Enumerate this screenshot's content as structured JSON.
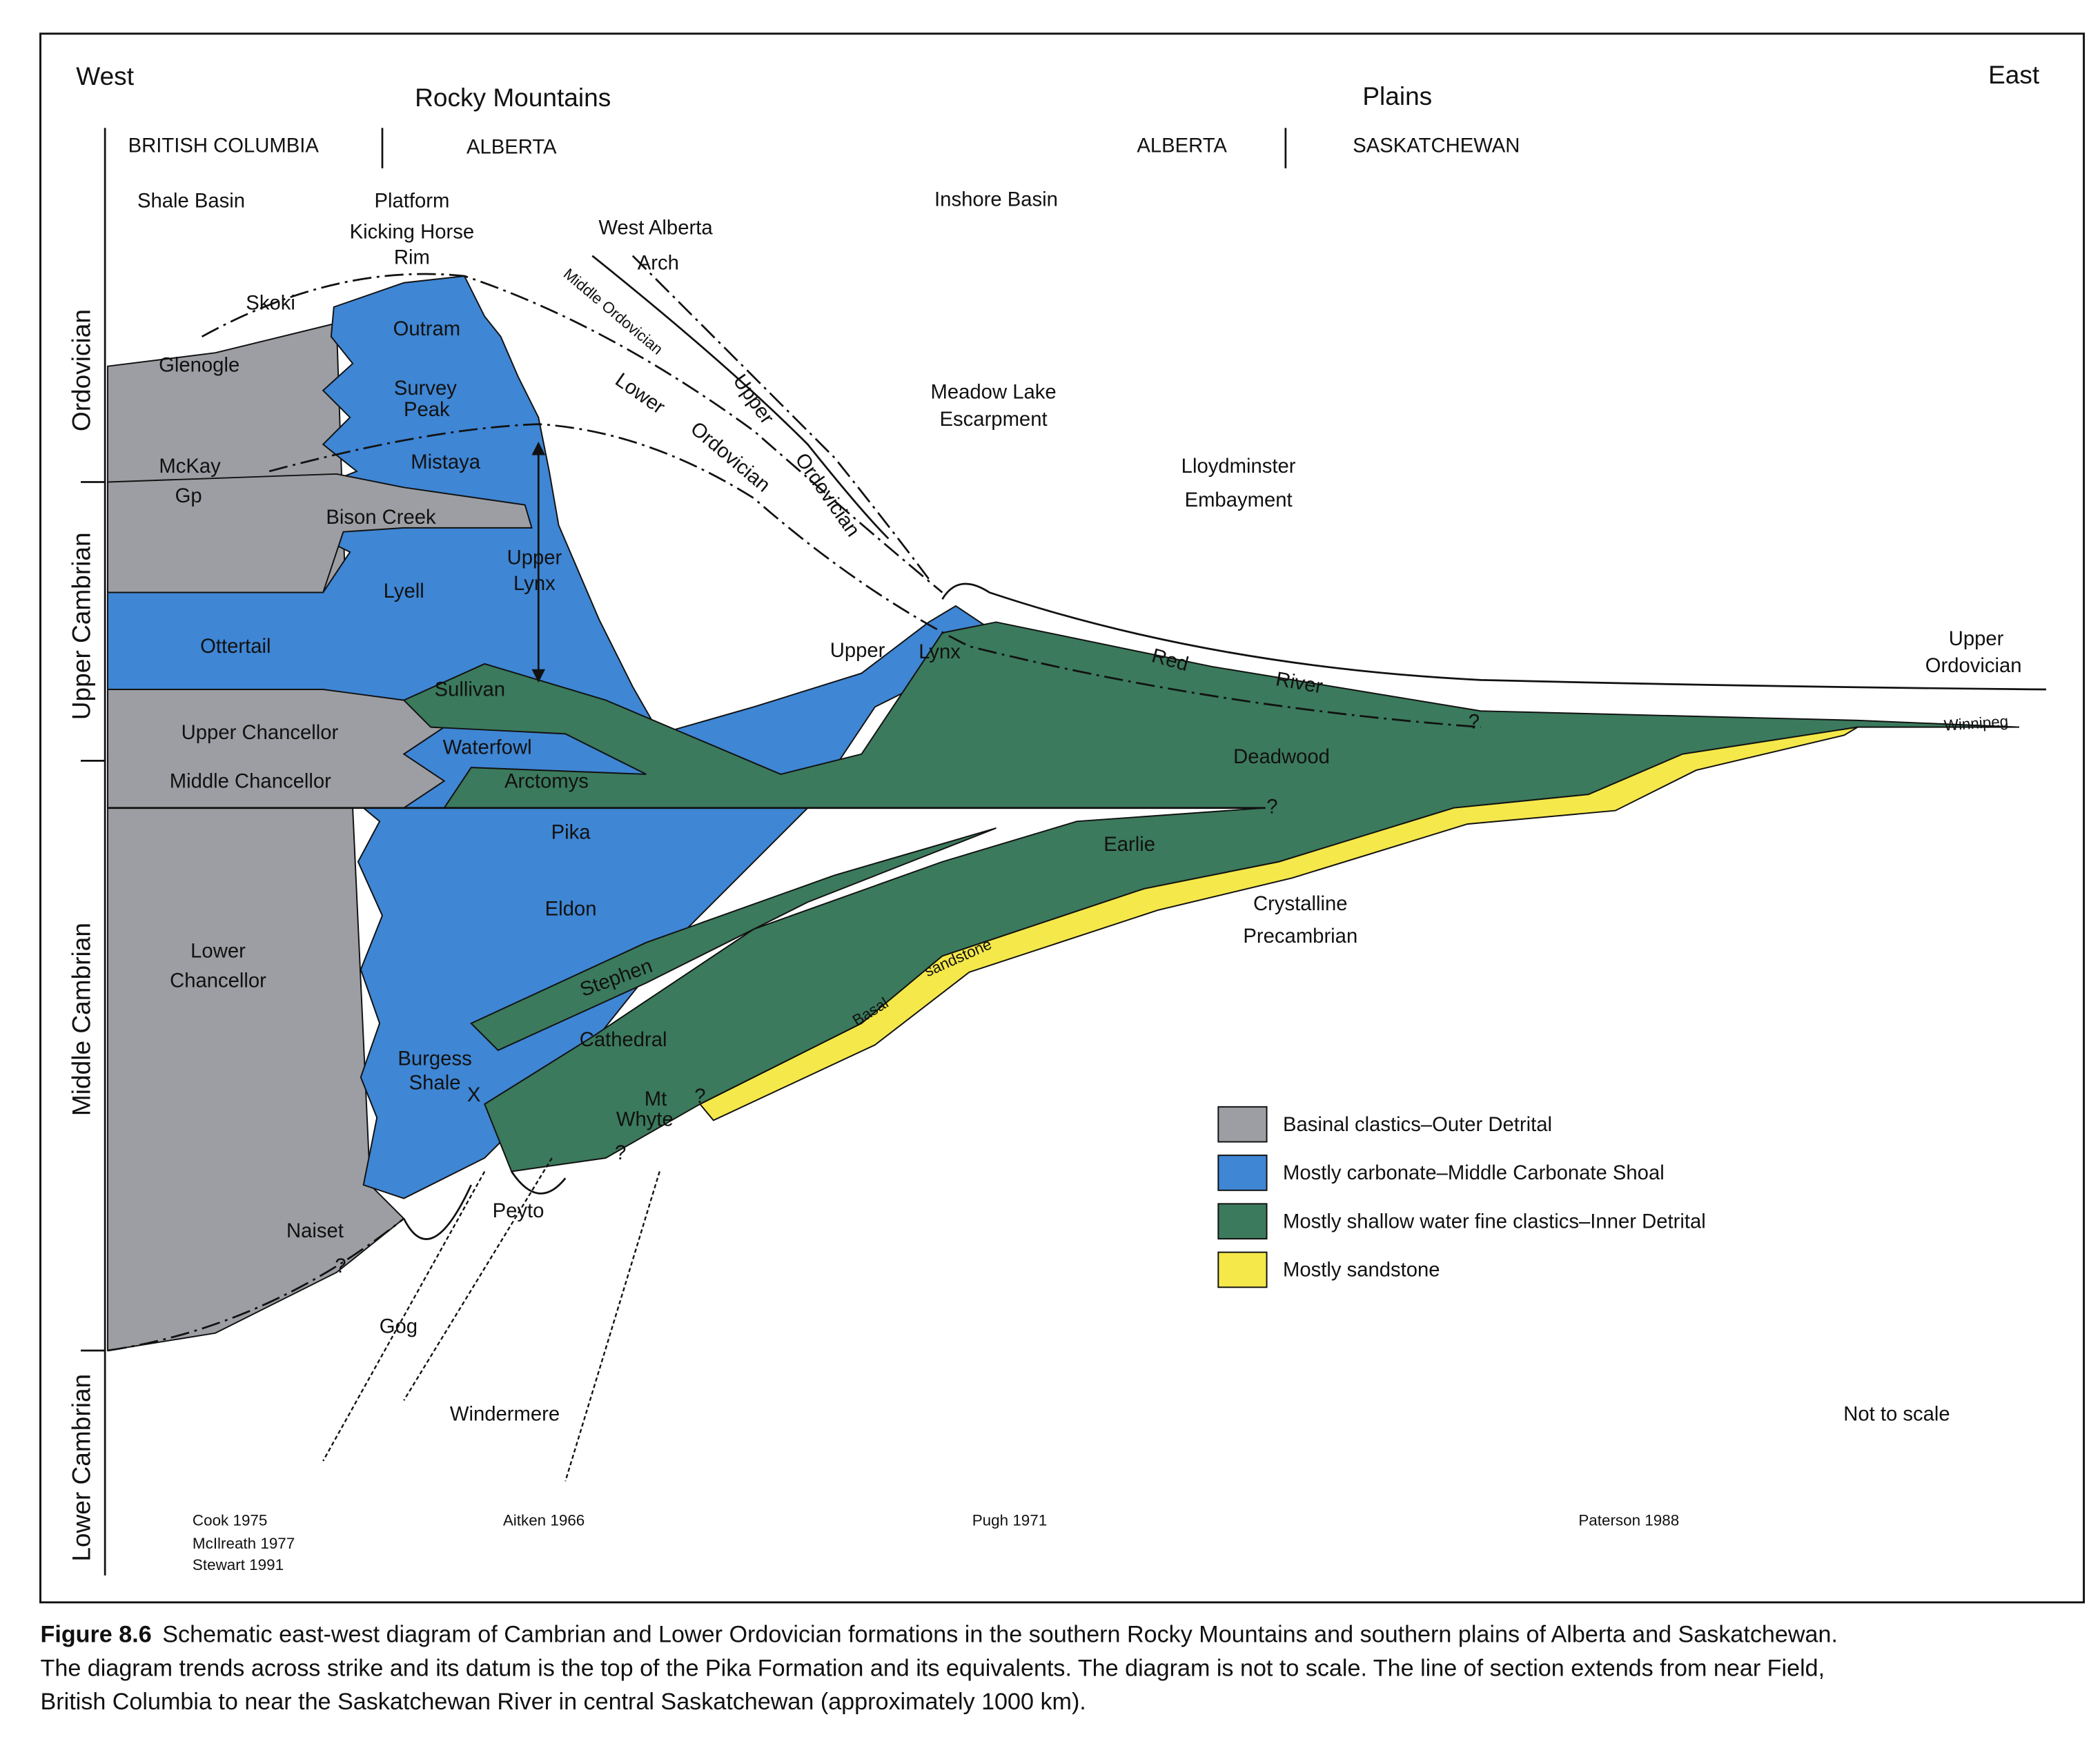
{
  "header": {
    "west": "West",
    "east": "East",
    "regions": [
      "Rocky Mountains",
      "Plains"
    ],
    "provinces": [
      "BRITISH COLUMBIA",
      "ALBERTA",
      "ALBERTA",
      "SASKATCHEWAN"
    ]
  },
  "geography": {
    "shale_basin": "Shale Basin",
    "platform": "Platform",
    "kicking_horse_rim": [
      "Kicking Horse",
      "Rim"
    ],
    "west_alberta_arch": [
      "West Alberta",
      "Arch"
    ],
    "inshore_basin": "Inshore Basin",
    "meadow_lake_escarpment": [
      "Meadow Lake",
      "Escarpment"
    ],
    "lloydminster_embayment": [
      "Lloydminster",
      "Embayment"
    ]
  },
  "periods": [
    "Ordovician",
    "Upper Cambrian",
    "Middle Cambrian",
    "Lower Cambrian"
  ],
  "formations": {
    "skoki": "Skoki",
    "glenogle": "Glenogle",
    "outram": "Outram",
    "survey_peak": [
      "Survey",
      "Peak"
    ],
    "mistaya": "Mistaya",
    "mckay": [
      "McKay",
      "Gp"
    ],
    "bison_creek": "Bison Creek",
    "upper_lynx": [
      "Upper",
      "Lynx"
    ],
    "lyell": "Lyell",
    "ottertail": "Ottertail",
    "sullivan": "Sullivan",
    "upper_chancellor": "Upper Chancellor",
    "waterfowl": "Waterfowl",
    "middle_chancellor": "Middle Chancellor",
    "arctomys": "Arctomys",
    "pika": "Pika",
    "eldon": "Eldon",
    "lower_chancellor": [
      "Lower",
      "Chancellor"
    ],
    "stephen": "Stephen",
    "cathedral": "Cathedral",
    "burgess_shale": [
      "Burgess",
      "Shale"
    ],
    "burgess_marker": "X",
    "mt_whyte": [
      "Mt",
      "Whyte"
    ],
    "naiset": "Naiset",
    "peyto": "Peyto",
    "gog": "Gog",
    "windermere": "Windermere",
    "deadwood": "Deadwood",
    "earlie": "Earlie",
    "crystalline_precambrian": [
      "Crystalline",
      "Precambrian"
    ],
    "basal_sandstone": [
      "Basal",
      "sandstone"
    ],
    "red_river": [
      "Red",
      "River"
    ],
    "winnipeg": "Winnipeg",
    "upper_ordovician_east": [
      "Upper",
      "Ordovician"
    ],
    "middle_ordovician": "Middle Ordovician",
    "upper_ordovician": [
      "Upper",
      "Ordovician"
    ],
    "lower_ordovician": [
      "Lower",
      "Ordovician"
    ],
    "upper_lynx_east": [
      "Upper",
      "Lynx"
    ],
    "uncertain": "?"
  },
  "legend": [
    "Basinal clastics–Outer Detrital",
    "Mostly carbonate–Middle Carbonate Shoal",
    "Mostly shallow water fine clastics–Inner Detrital",
    "Mostly sandstone"
  ],
  "note": "Not to scale",
  "references": [
    "Cook 1975",
    "McIlreath 1977",
    "Stewart 1991",
    "Aitken 1966",
    "Pugh 1971",
    "Paterson 1988"
  ],
  "caption": {
    "label": "Figure 8.6",
    "lines": [
      "Schematic east-west diagram of Cambrian and Lower Ordovician formations in the southern Rocky Mountains and southern plains of Alberta and Saskatchewan.",
      "The diagram trends across strike and its datum is the top of the Pika Formation and its equivalents. The diagram is not to scale. The line of section extends from near Field,",
      "British Columbia to near the Saskatchewan River in central Saskatchewan (approximately 1000 km)."
    ]
  }
}
